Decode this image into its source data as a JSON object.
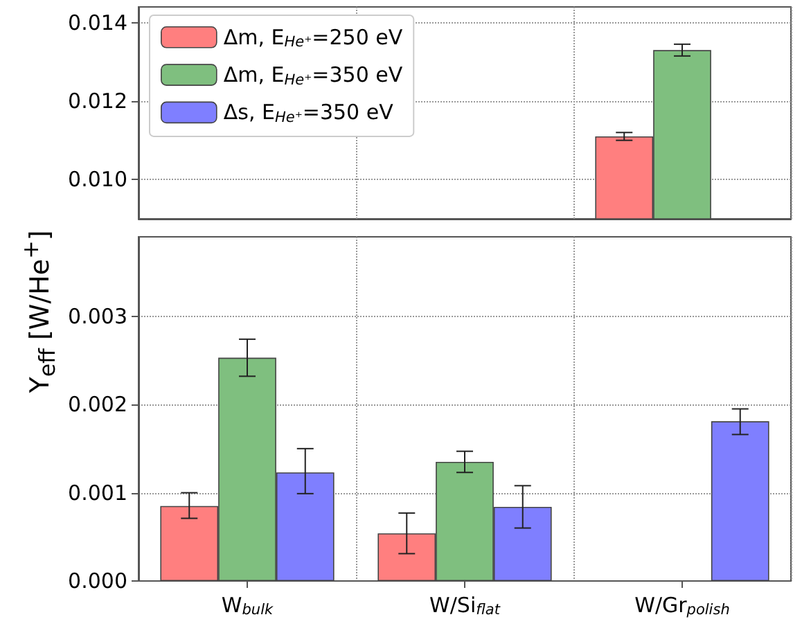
{
  "chart_data": [
    {
      "type": "bar",
      "categories": [
        null,
        null,
        null
      ],
      "ylim": [
        0.009,
        0.0144
      ],
      "yticks": [
        {
          "value": 0.01,
          "label": "0.010"
        },
        {
          "value": 0.012,
          "label": "0.012"
        },
        {
          "value": 0.014,
          "label": "0.014"
        }
      ],
      "grid": true,
      "legend": "top left",
      "tick_labels": "y",
      "series": [
        {
          "name": "Δm, E$_{He⁺}$=250 eV",
          "color": "#ff7f7f",
          "values": [
            null,
            null,
            0.0111
          ],
          "errors": [
            null,
            null,
            0.0001
          ]
        },
        {
          "name": "Δm, E$_{He⁺}$=350 eV",
          "color": "#7fbf7f",
          "values": [
            null,
            null,
            0.0133
          ],
          "errors": [
            null,
            null,
            0.00015
          ]
        },
        {
          "name": "Δs, E$_{He⁺}$=350 eV",
          "color": "#7f7fff",
          "values": [
            null,
            null,
            null
          ],
          "errors": [
            null,
            null,
            null
          ]
        }
      ]
    },
    {
      "type": "bar",
      "categories": [
        "W$_{bulk}$",
        "W/Si$_{flat}$",
        "W/Gr$_{polish}$"
      ],
      "ylabel": "Y$_{eff}$ [W/He$^{+}$]",
      "ylim": [
        0,
        0.0039
      ],
      "yticks": [
        {
          "value": 0,
          "label": "0.000"
        },
        {
          "value": 0.001,
          "label": "0.001"
        },
        {
          "value": 0.002,
          "label": "0.002"
        },
        {
          "value": 0.003,
          "label": "0.003"
        }
      ],
      "grid": true,
      "series": [
        {
          "color": "#ff7f7f",
          "values": [
            0.00085,
            0.00054,
            null
          ],
          "errors": [
            [
              0.00071,
              0.001
            ],
            [
              0.00031,
              0.00077
            ],
            null
          ]
        },
        {
          "color": "#7fbf7f",
          "values": [
            0.00253,
            0.00135,
            null
          ],
          "errors": [
            [
              0.00232,
              0.00274
            ],
            [
              0.00123,
              0.00147
            ],
            null
          ]
        },
        {
          "color": "#7f7fff",
          "values": [
            0.00123,
            0.00084,
            0.00181
          ],
          "errors": [
            [
              0.00099,
              0.0015
            ],
            [
              0.0006,
              0.00108
            ],
            [
              0.00166,
              0.00195
            ]
          ]
        }
      ]
    }
  ]
}
